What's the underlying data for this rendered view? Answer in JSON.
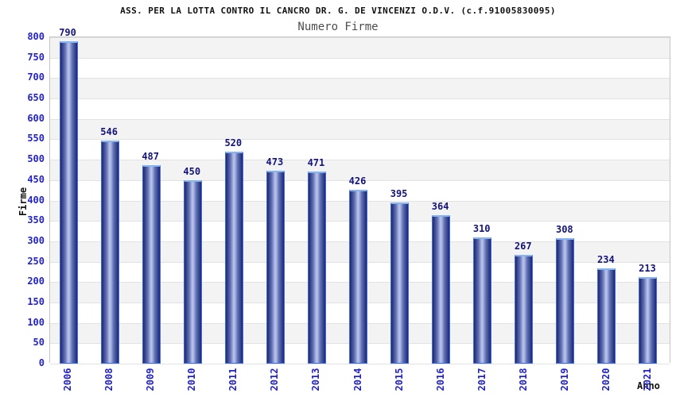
{
  "chart_data": {
    "type": "bar",
    "title": "ASS. PER LA LOTTA CONTRO IL CANCRO DR. G. DE VINCENZI O.D.V. (c.f.91005830095)",
    "subtitle": "Numero Firme",
    "xlabel": "Anno",
    "ylabel": "Firme",
    "categories": [
      "2006",
      "2008",
      "2009",
      "2010",
      "2011",
      "2012",
      "2013",
      "2014",
      "2015",
      "2016",
      "2017",
      "2018",
      "2019",
      "2020",
      "2021"
    ],
    "values": [
      790,
      546,
      487,
      450,
      520,
      473,
      471,
      426,
      395,
      364,
      310,
      267,
      308,
      234,
      213
    ],
    "ylim": [
      0,
      800
    ],
    "ytick_step": 50,
    "grid": true,
    "legend": false,
    "layout": {
      "bands_alternating": true,
      "bar_labels": "above",
      "xtick_rotation": -90
    },
    "colors": {
      "tick_label": "#2222cc",
      "value_label": "#14147d",
      "title_text": "#111111",
      "subtitle_text": "#4d4d4d",
      "band": "#f3f3f3",
      "band_alt": "#ffffff",
      "gridline": "#e2e2e2",
      "plot_border": "#c4c4c4",
      "bar_border": "#3e6ede",
      "bar_cap": "#85b4f0",
      "bar_dark": "#1c2673",
      "bar_mid": "#6272b4",
      "bar_light": "#b4c0ea"
    }
  }
}
